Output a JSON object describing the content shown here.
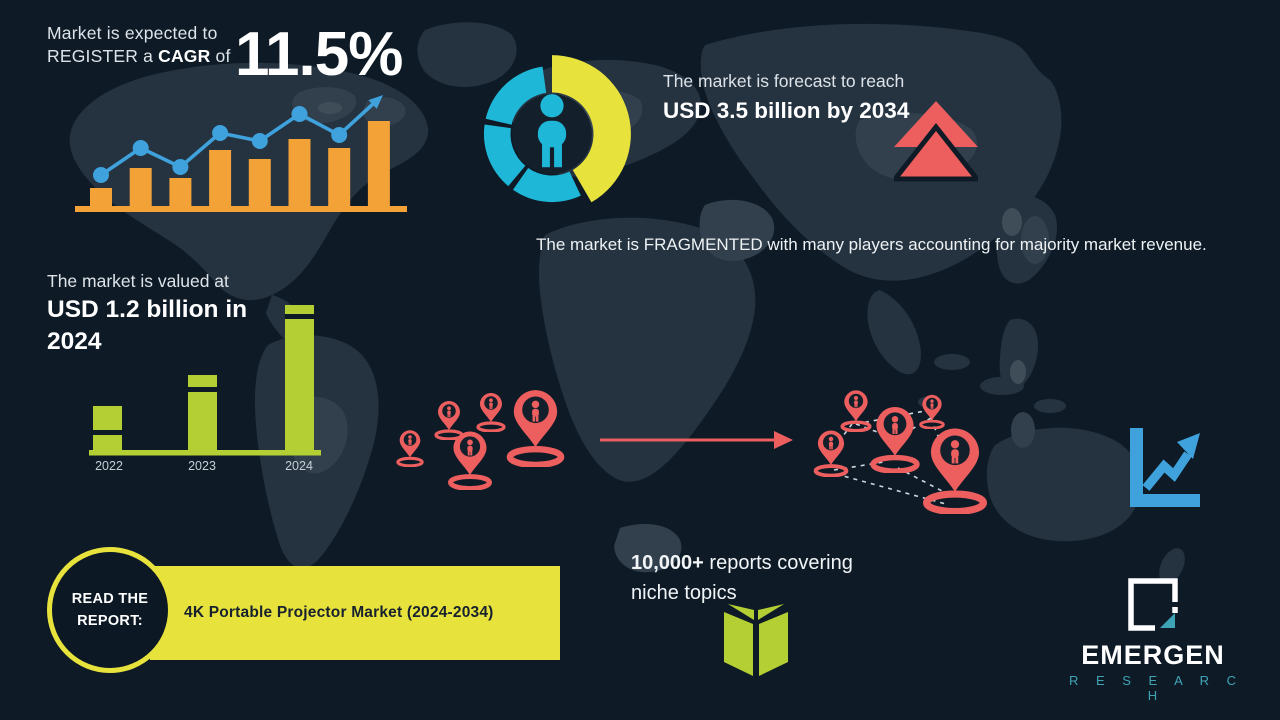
{
  "colors": {
    "background": "#0e1b27",
    "map_base": "#253341",
    "map_light": "#31404c",
    "map_lighter": "#3e4d58",
    "orange": "#f2a237",
    "blue": "#3fa2dc",
    "yellow": "#e8e23c",
    "teal": "#1fb7d8",
    "red": "#ed5e5e",
    "green": "#b4cf33",
    "logo_teal": "#3ea4b5",
    "dark_text": "#17222e",
    "network_line": "#cdd6dc"
  },
  "cagr_block": {
    "line1": "Market is expected to",
    "line2_prefix": "REGISTER a ",
    "line2_bold": "CAGR",
    "line2_suffix": " of",
    "value": "11.5%"
  },
  "forecast_block": {
    "intro": "The market is forecast to reach",
    "value": "USD 3.5 billion by 2034"
  },
  "fragmented_text": "The market is FRAGMENTED with many players accounting for majority market revenue.",
  "valuation_block": {
    "intro": "The market is valued at",
    "value": "USD 1.2 billion in 2024"
  },
  "read_report": {
    "button": "READ THE REPORT:",
    "title": "4K Portable Projector Market (2024-2034)"
  },
  "reports_block": {
    "stat": "10,000+",
    "rest": " reports covering niche topics"
  },
  "logo": {
    "name": "EMERGEN",
    "sub": "R E S E A R C H"
  },
  "chart_data": [
    {
      "type": "bar",
      "title": "CAGR growth trend (decorative, unlabeled axes)",
      "bar_values": [
        18,
        38,
        28,
        56,
        47,
        67,
        58,
        85
      ],
      "line_values": [
        31,
        58,
        39,
        73,
        65,
        92,
        71
      ],
      "note": "8 orange bars with rising blue dotted trend line ending in an up-right arrow; values are relative pixel heights, no axis labels shown"
    },
    {
      "type": "bar",
      "title": "Market valuation by year",
      "categories": [
        "2022",
        "2023",
        "2024"
      ],
      "values": [
        44,
        75,
        145
      ],
      "stripe_offsets": [
        24,
        12,
        9
      ],
      "note": "relative bar heights; labeled value shown on infographic: 2024 = USD 1.2 billion"
    },
    {
      "type": "donut",
      "title": "Decorative market-share donut with person icon",
      "segments": [
        {
          "name": "highlight",
          "color": "#e8e23c",
          "pct": 41
        },
        {
          "name": "segment-2",
          "color": "#1fb7d8",
          "pct": 17
        },
        {
          "name": "segment-3",
          "color": "#1fb7d8",
          "pct": 16
        },
        {
          "name": "segment-4",
          "color": "#1fb7d8",
          "pct": 19
        }
      ],
      "note": "no numeric labels shown; gaps between teal segments"
    }
  ]
}
